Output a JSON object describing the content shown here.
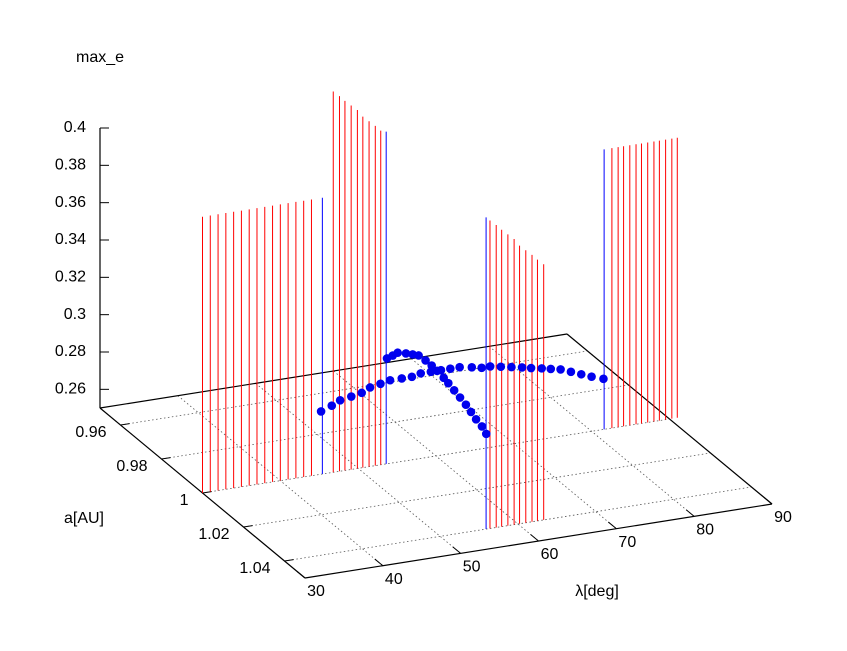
{
  "chart_data": {
    "type": "scatter3d",
    "xlabel": "λ[deg]",
    "ylabel": "a[AU]",
    "zlabel": "max_e",
    "xlim": [
      30,
      90
    ],
    "ylim": [
      0.95,
      1.05
    ],
    "zlim": [
      0.25,
      0.4
    ],
    "xticks": [
      30,
      40,
      50,
      60,
      70,
      80,
      90
    ],
    "yticks": [
      0.96,
      0.98,
      1,
      1.02,
      1.04
    ],
    "zticks": [
      0.26,
      0.28,
      0.3,
      0.32,
      0.34,
      0.36,
      0.38,
      0.4
    ],
    "grid": true,
    "series": [
      {
        "style": "impulses",
        "color": "#ff0000",
        "x": [
          30,
          31,
          32,
          33,
          34,
          35,
          36,
          37,
          38,
          39,
          40,
          41,
          42,
          43,
          44,
          46.8,
          47.6,
          48.3,
          49.1,
          49.9,
          50.6,
          51.4,
          52.2,
          52.9,
          56.4,
          57.2,
          57.9,
          58.7,
          59.5,
          60.2,
          61.0,
          61.8,
          62.5,
          63.3,
          82.6,
          83.4,
          84.1,
          84.9,
          85.7,
          86.4,
          87.2,
          88.0,
          88.7,
          89.5,
          90.3,
          91.0
        ],
        "y": [
          1,
          1,
          1,
          1,
          1,
          1,
          1,
          1,
          1,
          1,
          1,
          1,
          1,
          1,
          1,
          1,
          1,
          1,
          1,
          1,
          1,
          1,
          1,
          1,
          1.04,
          1.04,
          1.04,
          1.04,
          1.04,
          1.04,
          1.04,
          1.04,
          1.04,
          1.04,
          1,
          1,
          1,
          1,
          1,
          1,
          1,
          1,
          1,
          1,
          1,
          1
        ],
        "z": [
          0.398,
          0.398,
          0.398,
          0.398,
          0.398,
          0.398,
          0.398,
          0.398,
          0.398,
          0.398,
          0.398,
          0.398,
          0.398,
          0.398,
          0.398,
          0.454,
          0.451,
          0.448,
          0.445,
          0.442,
          0.438,
          0.435,
          0.432,
          0.429,
          0.415,
          0.412,
          0.409,
          0.406,
          0.403,
          0.399,
          0.396,
          0.393,
          0.39,
          0.387,
          0.4,
          0.4,
          0.4,
          0.4,
          0.4,
          0.4,
          0.4,
          0.4,
          0.4,
          0.4,
          0.4,
          0.4
        ]
      },
      {
        "style": "impulses",
        "color": "#0000ff",
        "x": [
          45.4,
          53.6,
          55.9,
          81.6
        ],
        "y": [
          1,
          1,
          1.04,
          1
        ],
        "z": [
          0.398,
          0.428,
          0.417,
          0.4
        ]
      },
      {
        "style": "points",
        "color": "#0000ee",
        "x": [
          53.4,
          55.3,
          56.9,
          58.6,
          60.2,
          61.8,
          63.4,
          64.9,
          66.4,
          67.7,
          69.1,
          70.4,
          71.7,
          72.9,
          74.1,
          75.4,
          76.4,
          77.5,
          78.6,
          79.7,
          80.8,
          81.7,
          82.8,
          83.7,
          84.7,
          85.5,
          86.3,
          87.1,
          88.1
        ],
        "y": [
          0.969,
          0.967,
          0.965,
          0.964,
          0.963,
          0.961,
          0.96,
          0.959,
          0.959,
          0.959,
          0.958,
          0.958,
          0.958,
          0.958,
          0.958,
          0.959,
          0.96,
          0.96,
          0.961,
          0.962,
          0.963,
          0.964,
          0.965,
          0.966,
          0.967,
          0.969,
          0.971,
          0.973,
          0.975
        ]
      },
      {
        "style": "points",
        "color": "#0000ee",
        "x": [
          67.4,
          68.4,
          69.3,
          70.1,
          70.7,
          71.2,
          71.3,
          71.3,
          71.2,
          71.0,
          70.8,
          70.5,
          70.2,
          69.9,
          69.5,
          69.1,
          68.8,
          68.3
        ],
        "y": [
          0.948,
          0.947,
          0.946,
          0.947,
          0.948,
          0.949,
          0.952,
          0.955,
          0.958,
          0.962,
          0.965,
          0.969,
          0.973,
          0.977,
          0.981,
          0.985,
          0.989,
          0.993
        ]
      }
    ]
  }
}
